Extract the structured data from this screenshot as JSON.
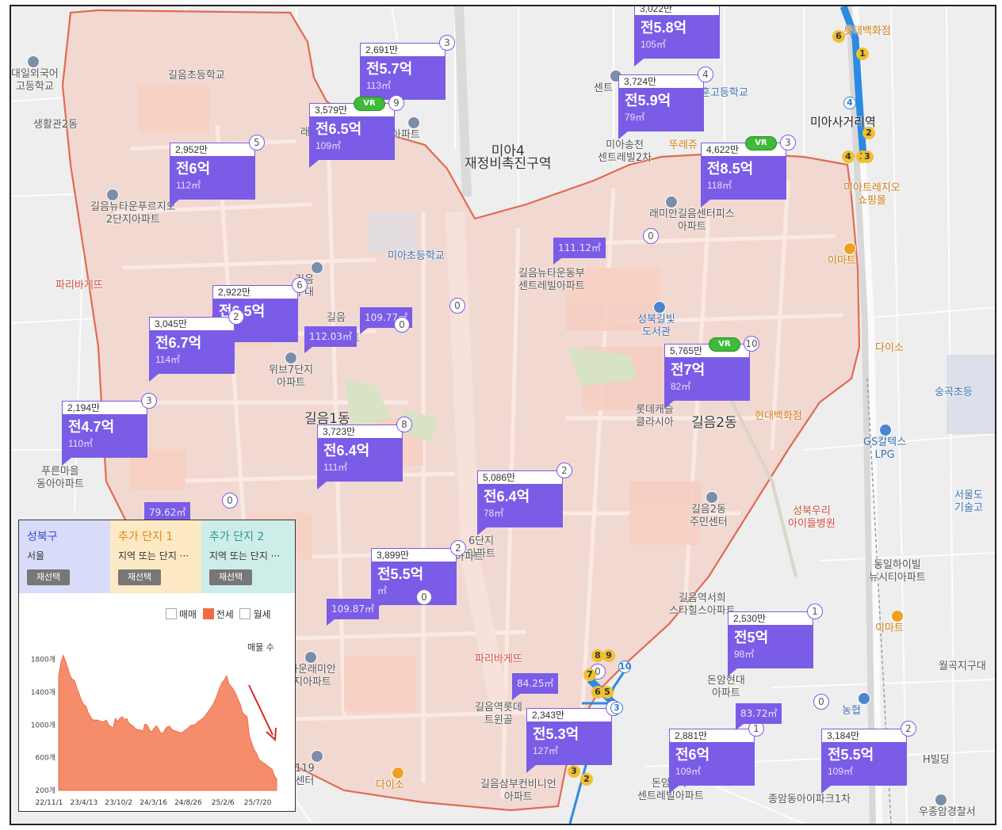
{
  "map": {
    "district_labels": [
      {
        "text": "미아4\n재정비촉진구역",
        "cls": "big"
      },
      {
        "text": "길음1동",
        "cls": "big"
      },
      {
        "text": "길음2동",
        "cls": "big"
      },
      {
        "text": "미아사거리역",
        "cls": "dark"
      }
    ],
    "places": [
      {
        "text": "대일외국어\n고등학교",
        "cls": ""
      },
      {
        "text": "생활관2동",
        "cls": ""
      },
      {
        "text": "길음초등학교",
        "cls": ""
      },
      {
        "text": "길음뉴타운푸르지오\n2단지아파트",
        "cls": ""
      },
      {
        "text": "파리바게뜨",
        "cls": "red"
      },
      {
        "text": "미아초등학교",
        "cls": "blue"
      },
      {
        "text": "위브7단지\n아파트",
        "cls": ""
      },
      {
        "text": "푸른마을\n동아아파트",
        "cls": ""
      },
      {
        "text": "길음뉴타운동부\n센트레빌아파트",
        "cls": ""
      },
      {
        "text": "성북길빛\n도서관",
        "cls": "blue"
      },
      {
        "text": "롯데캐슬\n클라시아",
        "cls": ""
      },
      {
        "text": "현대백화점",
        "cls": "org"
      },
      {
        "text": "래미안길음센터피스\n아파트",
        "cls": ""
      },
      {
        "text": "롯데백화점",
        "cls": "org"
      },
      {
        "text": "미아트레지오\n쇼핑몰",
        "cls": "org"
      },
      {
        "text": "이마트",
        "cls": "org"
      },
      {
        "text": "다이소",
        "cls": "org"
      },
      {
        "text": "숭곡초등",
        "cls": "blue"
      },
      {
        "text": "GS칼텍스\nLPG",
        "cls": "blue"
      },
      {
        "text": "서울도\n기술고",
        "cls": "blue"
      },
      {
        "text": "성북우리\n아이들병원",
        "cls": "red"
      },
      {
        "text": "길음2동\n주민센터",
        "cls": ""
      },
      {
        "text": "동일하이빌\n뉴시티아파트",
        "cls": ""
      },
      {
        "text": "길음역서희\n스타힐스아파트",
        "cls": ""
      },
      {
        "text": "이마트",
        "cls": "org"
      },
      {
        "text": "월곡지구대",
        "cls": ""
      },
      {
        "text": "돈암현대\n아파트",
        "cls": ""
      },
      {
        "text": "농협",
        "cls": "blue"
      },
      {
        "text": "H빌딩",
        "cls": ""
      },
      {
        "text": "파리바게뜨",
        "cls": "red"
      },
      {
        "text": "타운래미안\n지아파트",
        "cls": ""
      },
      {
        "text": "길음역롯데\n트윈골",
        "cls": ""
      },
      {
        "text": "길음삼부컨비니언\n아파트",
        "cls": ""
      },
      {
        "text": "다이소",
        "cls": "org"
      },
      {
        "text": "돈암동부\n센트레빌아파트",
        "cls": ""
      },
      {
        "text": "종암동아이파크1차",
        "cls": ""
      },
      {
        "text": "119\n센터",
        "cls": ""
      },
      {
        "text": "미아송천\n센트레빌2차",
        "cls": ""
      },
      {
        "text": "훈고등학교",
        "cls": "blue"
      },
      {
        "text": "센트",
        "cls": ""
      },
      {
        "text": "뚜레쥬",
        "cls": "org"
      },
      {
        "text": "래",
        "cls": ""
      },
      {
        "text": "아파트",
        "cls": ""
      },
      {
        "text": "아파트",
        "cls": ""
      },
      {
        "text": "6단지\n아파트",
        "cls": ""
      },
      {
        "text": "길음\n구대",
        "cls": ""
      },
      {
        "text": "아파트",
        "cls": ""
      },
      {
        "text": "길음",
        "cls": ""
      },
      {
        "text": "우종암경찰서",
        "cls": ""
      }
    ],
    "listings": [
      {
        "price": "3,022만",
        "deal": "전5.8억",
        "area": "105㎡",
        "count": "",
        "vr": false
      },
      {
        "price": "2,691만",
        "deal": "전5.7억",
        "area": "113㎡",
        "count": "3",
        "vr": false
      },
      {
        "price": "3,579만",
        "deal": "전6.5억",
        "area": "109㎡",
        "count": "9",
        "vr": true
      },
      {
        "price": "3,724만",
        "deal": "전5.9억",
        "area": "79㎡",
        "count": "4",
        "vr": false
      },
      {
        "price": "2,952만",
        "deal": "전6억",
        "area": "112㎡",
        "count": "5",
        "vr": false
      },
      {
        "price": "4,622만",
        "deal": "전8.5억",
        "area": "118㎡",
        "count": "3",
        "vr": true
      },
      {
        "price": "2,922만",
        "deal": "전6.5억",
        "area": "㎡",
        "count": "6",
        "vr": false
      },
      {
        "price": "3,045만",
        "deal": "전6.7억",
        "area": "114㎡",
        "count": "2",
        "vr": false
      },
      {
        "price": "5,765만",
        "deal": "전7억",
        "area": "82㎡",
        "count": "10",
        "vr": true
      },
      {
        "price": "2,194만",
        "deal": "전4.7억",
        "area": "110㎡",
        "count": "3",
        "vr": false
      },
      {
        "price": "3,723만",
        "deal": "전6.4억",
        "area": "111㎡",
        "count": "8",
        "vr": false
      },
      {
        "price": "5,086만",
        "deal": "전6.4억",
        "area": "78㎡",
        "count": "2",
        "vr": false
      },
      {
        "price": "3,899만",
        "deal": "전5.5억",
        "area": "㎡",
        "count": "2",
        "vr": false
      },
      {
        "price": "2,530만",
        "deal": "전5억",
        "area": "98㎡",
        "count": "1",
        "vr": false
      },
      {
        "price": "2,343만",
        "deal": "전5.3억",
        "area": "127㎡",
        "count": "3",
        "vr": false
      },
      {
        "price": "2,881만",
        "deal": "전6억",
        "area": "109㎡",
        "count": "1",
        "vr": false
      },
      {
        "price": "3,184만",
        "deal": "전5.5억",
        "area": "109㎡",
        "count": "2",
        "vr": false
      }
    ],
    "mini_listings": [
      {
        "area": "111.12㎡",
        "count": "0"
      },
      {
        "area": "109.77㎡",
        "count": "0"
      },
      {
        "area": "112.03㎡",
        "count": "0"
      },
      {
        "area": "79.62㎡",
        "count": "0"
      },
      {
        "area": "109.87㎡",
        "count": "0"
      },
      {
        "area": "84.25㎡",
        "count": "0"
      },
      {
        "area": "83.72㎡",
        "count": "0"
      }
    ],
    "vr_label": "VR",
    "subway_exits": [
      "1",
      "2",
      "3",
      "4",
      "6",
      "4",
      "3",
      "8",
      "9",
      "10",
      "7",
      "6",
      "5",
      "3",
      "2",
      "3"
    ]
  },
  "panel": {
    "tabs": [
      {
        "title": "성북구",
        "subtitle": "서울",
        "button": "재선택",
        "color": "#d8dcf8",
        "title_color": "#3b4bd0"
      },
      {
        "title": "추가 단지 1",
        "subtitle": "지역 또는 단지 ···",
        "button": "재선택",
        "color": "#fde9c4",
        "title_color": "#e08a10"
      },
      {
        "title": "추가 단지 2",
        "subtitle": "지역 또는 단지 ···",
        "button": "재선택",
        "color": "#cdeee8",
        "title_color": "#2a9a8a"
      }
    ],
    "legend": {
      "sale": "매매",
      "jeonse": "전세",
      "monthly": "월세"
    },
    "ylabel": "매물 수"
  },
  "chart_data": {
    "type": "area",
    "series": [
      {
        "name": "전세",
        "color": "#f58c6c"
      }
    ],
    "x_tick_labels": [
      "22/11/1",
      "23/4/13",
      "23/10/2",
      "24/3/16",
      "24/8/26",
      "25/2/6",
      "25/7/20"
    ],
    "y_tick_labels": [
      "1800개",
      "1400개",
      "1000개",
      "600개",
      "200개"
    ],
    "y_ticks": [
      1800,
      1400,
      1000,
      600,
      200
    ],
    "ylim": [
      200,
      2000
    ],
    "ylabel": "매물 수",
    "values": [
      1600,
      1760,
      1850,
      1780,
      1700,
      1600,
      1560,
      1540,
      1450,
      1380,
      1300,
      1250,
      1230,
      1150,
      1100,
      1060,
      1060,
      1060,
      1050,
      1040,
      1040,
      1060,
      1000,
      980,
      960,
      1080,
      1040,
      1080,
      1100,
      1060,
      1080,
      1020,
      1000,
      980,
      950,
      940,
      940,
      920,
      1010,
      1000,
      940,
      910,
      960,
      990,
      950,
      900,
      900,
      950,
      980,
      980,
      940,
      930,
      920,
      910,
      900,
      920,
      940,
      960,
      990,
      1000,
      1000,
      1030,
      1050,
      1070,
      1090,
      1130,
      1170,
      1210,
      1250,
      1310,
      1380,
      1460,
      1520,
      1550,
      1600,
      1500,
      1470,
      1430,
      1380,
      1310,
      1250,
      1150,
      1120,
      1100,
      860,
      780,
      700,
      660,
      590,
      560,
      540,
      520,
      500,
      480,
      460,
      380,
      340
    ],
    "annotation": "red arrow pointing down at end"
  }
}
